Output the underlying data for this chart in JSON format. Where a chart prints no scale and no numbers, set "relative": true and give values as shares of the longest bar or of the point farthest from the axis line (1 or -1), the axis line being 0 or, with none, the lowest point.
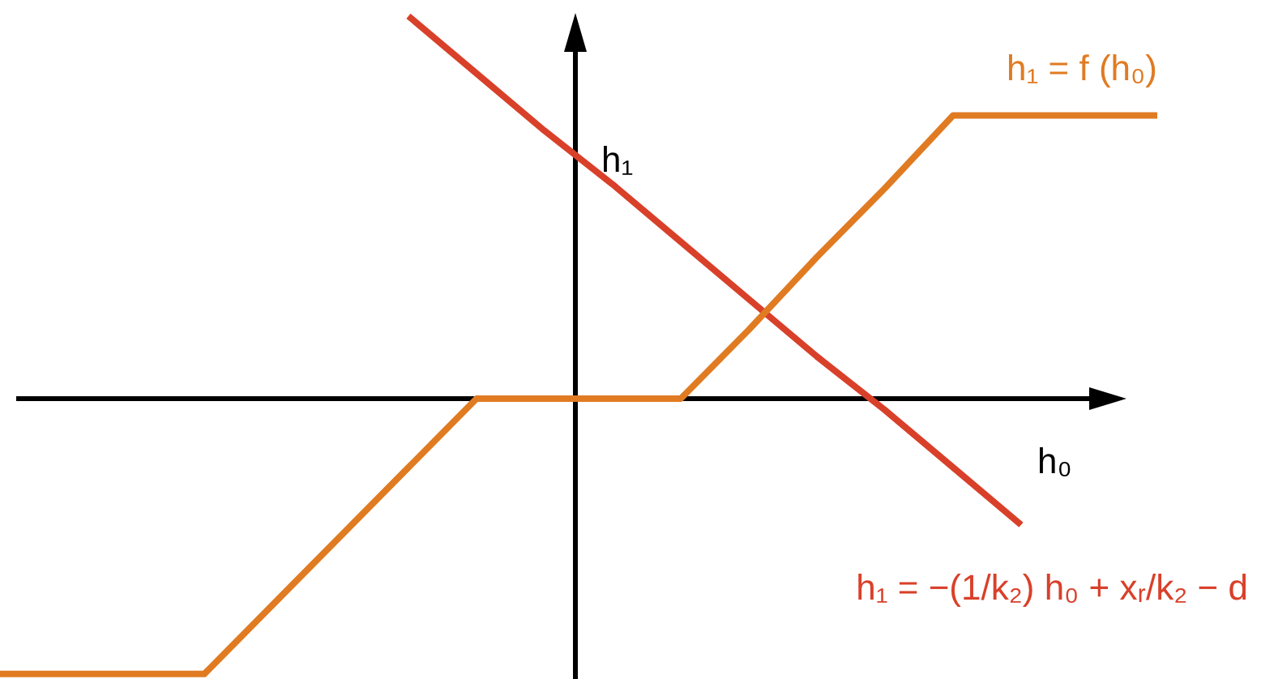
{
  "chart_data": {
    "type": "line",
    "relative": true,
    "xlabel": "h₀",
    "ylabel": "h₁",
    "legend": false,
    "marker": "none",
    "line_style": "solid",
    "categories": [
      null,
      null,
      null,
      null,
      null,
      null,
      null,
      null,
      null,
      null,
      null,
      null,
      null,
      null,
      null,
      null,
      null,
      null
    ],
    "series": [
      {
        "name": "h₁ = f (h₀)",
        "color": "#e07b22",
        "values": [
          -0.72,
          -0.72,
          -0.72,
          -0.72,
          -0.54,
          -0.36,
          -0.18,
          0,
          0,
          0,
          0,
          0.18,
          0.37,
          0.55,
          0.74,
          0.74,
          0.74,
          0.74
        ]
      },
      {
        "name": "h₁ = −(1/k₂) h₀ + xᵣ/k₂ − d",
        "color": "#d9402a",
        "values": [
          null,
          null,
          null,
          null,
          null,
          null,
          1,
          0.85,
          0.7,
          0.56,
          0.41,
          0.26,
          0.11,
          -0.03,
          -0.18,
          -0.33,
          null,
          null
        ]
      }
    ]
  }
}
